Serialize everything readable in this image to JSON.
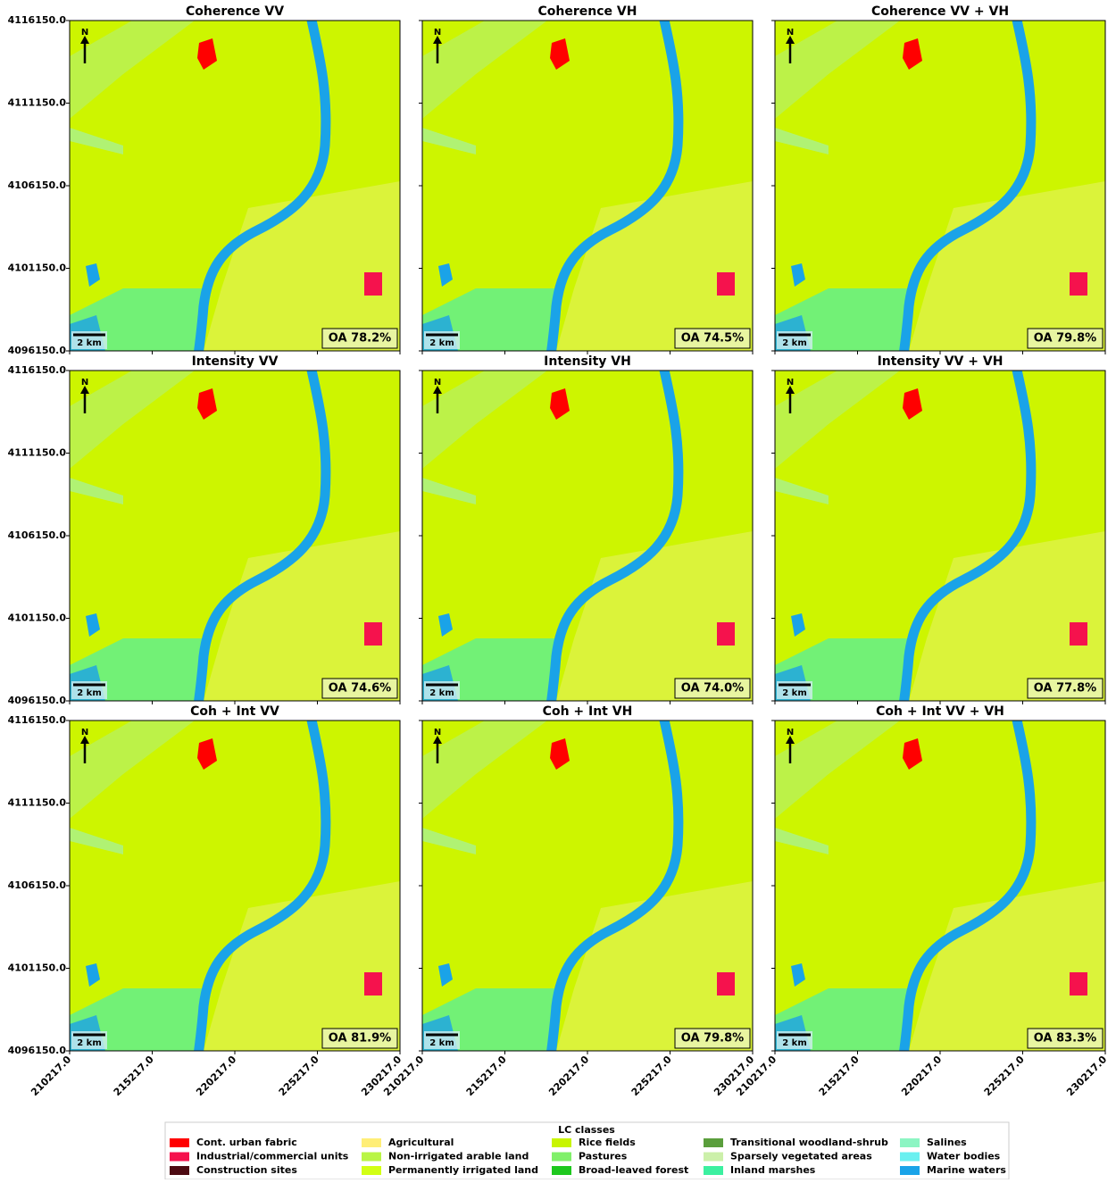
{
  "panels": [
    {
      "title": "Coherence VV",
      "oa": "OA 78.2%"
    },
    {
      "title": "Coherence VH",
      "oa": "OA 74.5%"
    },
    {
      "title": "Coherence VV + VH",
      "oa": "OA 79.8%"
    },
    {
      "title": "Intensity VV",
      "oa": "OA 74.6%"
    },
    {
      "title": "Intensity VH",
      "oa": "OA 74.0%"
    },
    {
      "title": "Intensity VV + VH",
      "oa": "OA 77.8%"
    },
    {
      "title": "Coh + Int VV",
      "oa": "OA 81.9%"
    },
    {
      "title": "Coh + Int VH",
      "oa": "OA 79.8%"
    },
    {
      "title": "Coh + Int VV + VH",
      "oa": "OA 83.3%"
    }
  ],
  "scale_bar": "2 km",
  "north": "N",
  "xlim": [
    210217,
    230217
  ],
  "xticks": [
    {
      "value": 210217,
      "label": "210217.0"
    },
    {
      "value": 215217,
      "label": "215217.0"
    },
    {
      "value": 220217,
      "label": "220217.0"
    },
    {
      "value": 225217,
      "label": "225217.0"
    },
    {
      "value": 230217,
      "label": "230217.0"
    }
  ],
  "ylim": [
    4096150,
    4116150
  ],
  "yticks": [
    {
      "value": 4096150,
      "label": "4096150.0"
    },
    {
      "value": 4101150,
      "label": "4101150.0"
    },
    {
      "value": 4106150,
      "label": "4106150.0"
    },
    {
      "value": 4111150,
      "label": "4111150.0"
    },
    {
      "value": 4116150,
      "label": "4116150.0"
    }
  ],
  "legend": {
    "title": "LC classes",
    "items": [
      {
        "name": "Cont. urban fabric",
        "color": "#ff0000"
      },
      {
        "name": "Industrial/commercial units",
        "color": "#f5124d"
      },
      {
        "name": "Construction sites",
        "color": "#4d0a12"
      },
      {
        "name": "Agricultural",
        "color": "#ffee77"
      },
      {
        "name": "Non-irrigated arable land",
        "color": "#b9f545"
      },
      {
        "name": "Permanently irrigated land",
        "color": "#d2ff14"
      },
      {
        "name": "Rice fields",
        "color": "#c8f500"
      },
      {
        "name": "Pastures",
        "color": "#80f06a"
      },
      {
        "name": "Broad-leaved forest",
        "color": "#1ec81e"
      },
      {
        "name": "Transitional woodland-shrub",
        "color": "#5a9e3c"
      },
      {
        "name": "Sparsely vegetated areas",
        "color": "#ccf0aa"
      },
      {
        "name": "Inland marshes",
        "color": "#3cf0a0"
      },
      {
        "name": "Salines",
        "color": "#8cf5c3"
      },
      {
        "name": "Water bodies",
        "color": "#6af0f0"
      },
      {
        "name": "Marine waters",
        "color": "#1aa3e8"
      }
    ]
  }
}
